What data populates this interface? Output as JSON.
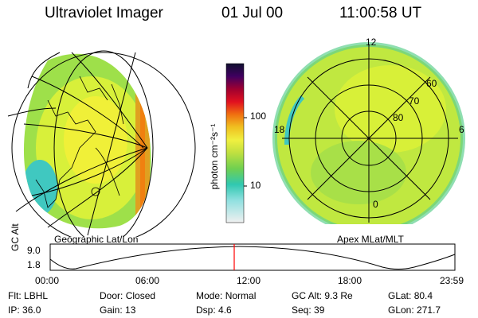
{
  "header": {
    "title": "Ultraviolet Imager",
    "date": "01 Jul 00",
    "time": "11:00:58 UT"
  },
  "colorbar": {
    "unit_label": "photon cm⁻²s⁻¹",
    "ticks": [
      "100",
      "10"
    ]
  },
  "left_panel": {
    "caption": "Geographic Lat/Lon"
  },
  "right_panel": {
    "caption": "Apex MLat/MLT",
    "mlt_labels": {
      "top": "12",
      "left": "18",
      "right": "6",
      "bottom": "0"
    },
    "lat_labels": [
      "60",
      "70",
      "80"
    ]
  },
  "orbit_plot": {
    "ylabel": "GC Alt",
    "yticks": [
      "9.0",
      "1.8"
    ],
    "xticks": [
      "00:00",
      "06:00",
      "12:00",
      "18:00",
      "23:59"
    ],
    "marker_color": "#ff0000"
  },
  "status": {
    "row1": [
      {
        "label": "Flt:",
        "value": "LBHL"
      },
      {
        "label": "Door:",
        "value": "Closed"
      },
      {
        "label": "Mode:",
        "value": "Normal"
      },
      {
        "label": "GC Alt:",
        "value": "9.3 Re"
      },
      {
        "label": "GLat:",
        "value": "80.4"
      }
    ],
    "row2": [
      {
        "label": "IP:",
        "value": "36.0"
      },
      {
        "label": "Gain:",
        "value": "13"
      },
      {
        "label": "Dsp:",
        "value": "4.6"
      },
      {
        "label": "Seq:",
        "value": "39"
      },
      {
        "label": "GLon:",
        "value": "271.7"
      }
    ]
  }
}
